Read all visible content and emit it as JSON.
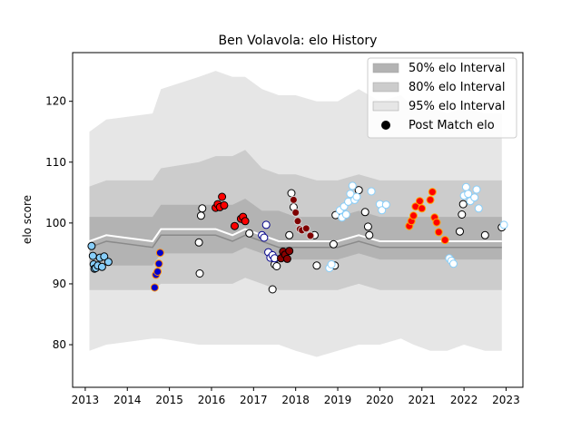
{
  "chart_data": {
    "type": "scatter",
    "title": "Ben Volavola: elo History",
    "xlabel": "",
    "ylabel": "elo score",
    "xlim": [
      2012.7,
      2023.4
    ],
    "ylim": [
      73,
      128
    ],
    "x_ticks": [
      2013,
      2014,
      2015,
      2016,
      2017,
      2018,
      2019,
      2020,
      2021,
      2022,
      2023
    ],
    "x_tick_labels": [
      "2013",
      "2014",
      "2015",
      "2016",
      "2017",
      "2018",
      "2019",
      "2020",
      "2021",
      "2022",
      "2023"
    ],
    "y_ticks": [
      80,
      90,
      100,
      110,
      120
    ],
    "y_tick_labels": [
      "80",
      "90",
      "100",
      "110",
      "120"
    ],
    "grid": false,
    "legend_position": "top-right",
    "legend": [
      {
        "label": "50% elo Interval",
        "kind": "band",
        "color": "#b3b3b3"
      },
      {
        "label": "80% elo Interval",
        "kind": "band",
        "color": "#cccccc"
      },
      {
        "label": "95% elo Interval",
        "kind": "band",
        "color": "#e6e6e6"
      },
      {
        "label": "Post Match elo",
        "kind": "marker",
        "color": "#000000"
      }
    ],
    "bands": {
      "x": [
        2013.1,
        2013.5,
        2014.6,
        2014.8,
        2015.7,
        2016.1,
        2016.5,
        2016.8,
        2017.2,
        2017.6,
        2018.0,
        2018.5,
        2019.0,
        2019.5,
        2020.0,
        2020.5,
        2020.8,
        2021.2,
        2021.6,
        2022.0,
        2022.5,
        2022.9
      ],
      "mid": [
        97,
        98,
        97,
        99,
        99,
        99,
        98,
        99,
        98,
        97,
        97,
        97,
        97,
        98,
        97,
        97,
        97,
        97,
        97,
        97,
        97,
        97
      ],
      "p50_low": [
        93,
        93,
        93,
        95,
        95,
        95,
        95,
        96,
        95,
        94,
        94,
        94,
        94,
        95,
        94,
        94,
        94,
        94,
        94,
        94,
        94,
        94
      ],
      "p50_high": [
        101,
        101,
        101,
        103,
        103,
        103,
        103,
        104,
        102,
        102,
        101,
        101,
        101,
        102,
        101,
        101,
        101,
        101,
        101,
        101,
        101,
        101
      ],
      "p80_low": [
        89,
        89,
        89,
        90,
        90,
        90,
        90,
        91,
        90,
        89,
        89,
        89,
        89,
        90,
        89,
        89,
        89,
        89,
        89,
        89,
        89,
        89
      ],
      "p80_high": [
        106,
        107,
        107,
        109,
        110,
        111,
        111,
        112,
        109,
        108,
        108,
        107,
        107,
        108,
        107,
        107,
        107,
        107,
        107,
        107,
        107,
        107
      ],
      "p95_low": [
        79,
        80,
        81,
        81,
        80,
        80,
        80,
        80,
        80,
        80,
        79,
        78,
        79,
        80,
        80,
        81,
        80,
        79,
        79,
        80,
        79,
        79
      ],
      "p95_high": [
        115,
        117,
        118,
        122,
        124,
        125,
        124,
        124,
        122,
        121,
        121,
        120,
        120,
        122,
        120,
        121,
        119,
        119,
        118,
        119,
        118,
        118
      ]
    },
    "series": [
      {
        "color": "#87cefa",
        "edge": "#000000",
        "points": [
          [
            2013.15,
            96.2
          ],
          [
            2013.18,
            94.6
          ],
          [
            2013.2,
            93.2
          ],
          [
            2013.22,
            92.5
          ],
          [
            2013.25,
            92.6
          ],
          [
            2013.3,
            93.0
          ],
          [
            2013.35,
            94.3
          ],
          [
            2013.4,
            92.8
          ],
          [
            2013.45,
            94.5
          ],
          [
            2013.55,
            93.6
          ]
        ]
      },
      {
        "color": "#0000cd",
        "edge": "#ff8c00",
        "points": [
          [
            2014.65,
            89.4
          ],
          [
            2014.68,
            91.5
          ],
          [
            2014.72,
            92.0
          ],
          [
            2014.75,
            93.3
          ],
          [
            2014.78,
            95.1
          ]
        ]
      },
      {
        "color": "#ffffff",
        "edge": "#000000",
        "points": [
          [
            2015.7,
            96.8
          ],
          [
            2015.72,
            91.7
          ],
          [
            2015.75,
            101.2
          ],
          [
            2015.78,
            102.4
          ],
          [
            2016.9,
            98.3
          ],
          [
            2017.45,
            89.1
          ],
          [
            2017.5,
            93.2
          ],
          [
            2017.55,
            92.9
          ],
          [
            2018.5,
            93.0
          ],
          [
            2018.9,
            96.5
          ],
          [
            2018.93,
            93.0
          ],
          [
            2018.95,
            101.3
          ],
          [
            2019.5,
            105.4
          ],
          [
            2019.65,
            101.8
          ],
          [
            2019.72,
            99.4
          ],
          [
            2019.75,
            98.0
          ],
          [
            2021.9,
            98.6
          ],
          [
            2021.95,
            101.4
          ],
          [
            2021.98,
            103.1
          ],
          [
            2022.5,
            98.0
          ],
          [
            2022.9,
            99.3
          ]
        ]
      },
      {
        "color": "#ff0000",
        "edge": "#000000",
        "points": [
          [
            2016.1,
            102.5
          ],
          [
            2016.15,
            103.1
          ],
          [
            2016.2,
            102.6
          ],
          [
            2016.25,
            104.3
          ],
          [
            2016.3,
            102.9
          ],
          [
            2016.55,
            99.5
          ],
          [
            2016.7,
            100.7
          ],
          [
            2016.75,
            101.0
          ],
          [
            2016.8,
            100.3
          ]
        ]
      },
      {
        "color": "#ffffff",
        "edge": "#00008b",
        "points": [
          [
            2017.2,
            98.0
          ],
          [
            2017.25,
            97.6
          ],
          [
            2017.3,
            99.7
          ],
          [
            2017.35,
            95.2
          ],
          [
            2017.4,
            94.3
          ],
          [
            2017.45,
            94.7
          ],
          [
            2017.5,
            94.2
          ]
        ]
      },
      {
        "color": "#8b0000",
        "edge": "#000000",
        "points": [
          [
            2017.65,
            94.2
          ],
          [
            2017.7,
            95.3
          ],
          [
            2017.75,
            94.8
          ],
          [
            2017.8,
            94.1
          ],
          [
            2017.85,
            95.4
          ]
        ]
      },
      {
        "color": "#ffffff",
        "edge": "#000000",
        "points": [
          [
            2017.85,
            98.0
          ],
          [
            2017.9,
            104.9
          ],
          [
            2017.95,
            102.6
          ],
          [
            2018.45,
            98.0
          ]
        ]
      },
      {
        "color": "#800000",
        "edge": "#d3d3d3",
        "points": [
          [
            2017.95,
            103.8
          ],
          [
            2018.0,
            101.7
          ],
          [
            2018.05,
            100.3
          ],
          [
            2018.1,
            99.0
          ],
          [
            2018.15,
            98.8
          ],
          [
            2018.25,
            99.1
          ],
          [
            2018.35,
            97.9
          ]
        ]
      },
      {
        "color": "#ffffff",
        "edge": "#87cefa",
        "points": [
          [
            2018.8,
            92.6
          ],
          [
            2018.85,
            93.2
          ],
          [
            2019.05,
            102.1
          ],
          [
            2019.1,
            100.9
          ],
          [
            2019.15,
            102.7
          ],
          [
            2019.2,
            101.4
          ],
          [
            2019.25,
            103.5
          ],
          [
            2019.3,
            104.8
          ],
          [
            2019.35,
            106.1
          ],
          [
            2019.4,
            103.8
          ],
          [
            2019.45,
            104.3
          ],
          [
            2019.8,
            105.2
          ],
          [
            2020.0,
            103.1
          ],
          [
            2020.05,
            102.1
          ],
          [
            2020.15,
            103.0
          ],
          [
            2021.65,
            94.2
          ],
          [
            2021.7,
            93.8
          ],
          [
            2021.75,
            93.3
          ],
          [
            2022.0,
            104.5
          ],
          [
            2022.05,
            105.9
          ],
          [
            2022.1,
            104.8
          ],
          [
            2022.15,
            103.6
          ],
          [
            2022.25,
            104.2
          ],
          [
            2022.3,
            105.5
          ],
          [
            2022.35,
            102.4
          ],
          [
            2022.95,
            99.7
          ]
        ]
      },
      {
        "color": "#ff0000",
        "edge": "#ffa500",
        "points": [
          [
            2020.7,
            99.5
          ],
          [
            2020.75,
            100.3
          ],
          [
            2020.8,
            101.2
          ],
          [
            2020.85,
            102.7
          ],
          [
            2020.95,
            103.6
          ],
          [
            2021.0,
            102.4
          ],
          [
            2021.2,
            103.8
          ],
          [
            2021.25,
            105.1
          ],
          [
            2021.3,
            100.9
          ],
          [
            2021.35,
            100.1
          ],
          [
            2021.4,
            98.5
          ],
          [
            2021.55,
            97.2
          ]
        ]
      }
    ]
  }
}
